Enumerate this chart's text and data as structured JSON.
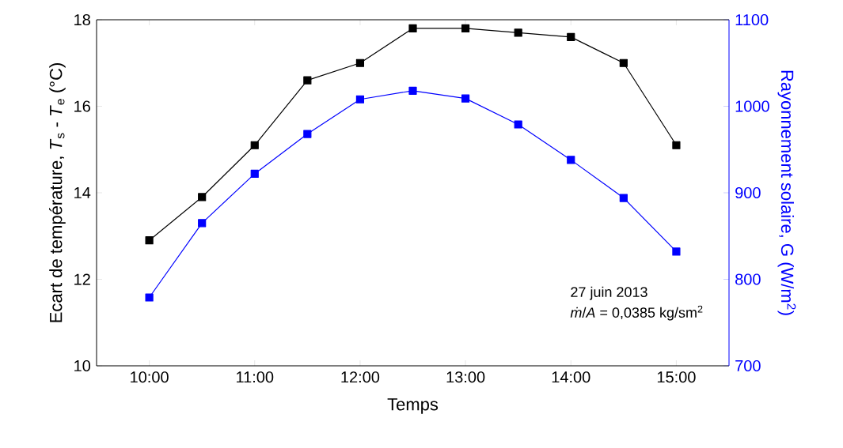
{
  "chart_data": {
    "type": "line",
    "xlabel": "Temps",
    "ylabel": "Ecart de température, *T*$_{s}$ - *T*$_{e}$ (°C)",
    "y2label": "Rayonnement solaire, G (W/m$^{2}$)",
    "x": [
      10,
      10.5,
      11,
      11.5,
      12,
      12.5,
      13,
      13.5,
      14,
      14.5,
      15
    ],
    "series": [
      {
        "color": "#000000",
        "axis": "y",
        "values": [
          12.9,
          13.9,
          15.1,
          16.6,
          17.0,
          17.8,
          17.8,
          17.7,
          17.6,
          17.0,
          15.1
        ]
      },
      {
        "color": "#0000ff",
        "axis": "y2",
        "values": [
          779,
          865,
          922,
          968,
          1008,
          1018,
          1009,
          979,
          938,
          894,
          832
        ]
      }
    ],
    "xlim": [
      9.5,
      15.5
    ],
    "xticks": [
      {
        "value": 10,
        "label": "10:00"
      },
      {
        "value": 11,
        "label": "11:00"
      },
      {
        "value": 12,
        "label": "12:00"
      },
      {
        "value": 13,
        "label": "13:00"
      },
      {
        "value": 14,
        "label": "14:00"
      },
      {
        "value": 15,
        "label": "15:00"
      }
    ],
    "ylim": [
      10,
      18
    ],
    "yticks": [
      10,
      12,
      14,
      16,
      18
    ],
    "y2lim": [
      700,
      1100
    ],
    "y2ticks": [
      700,
      800,
      900,
      1000,
      1100
    ],
    "marker": "square",
    "annotations": [
      "27 juin 2013",
      "*ṁ*/*A* = 0,0385 kg/sm$^{2}$"
    ]
  }
}
